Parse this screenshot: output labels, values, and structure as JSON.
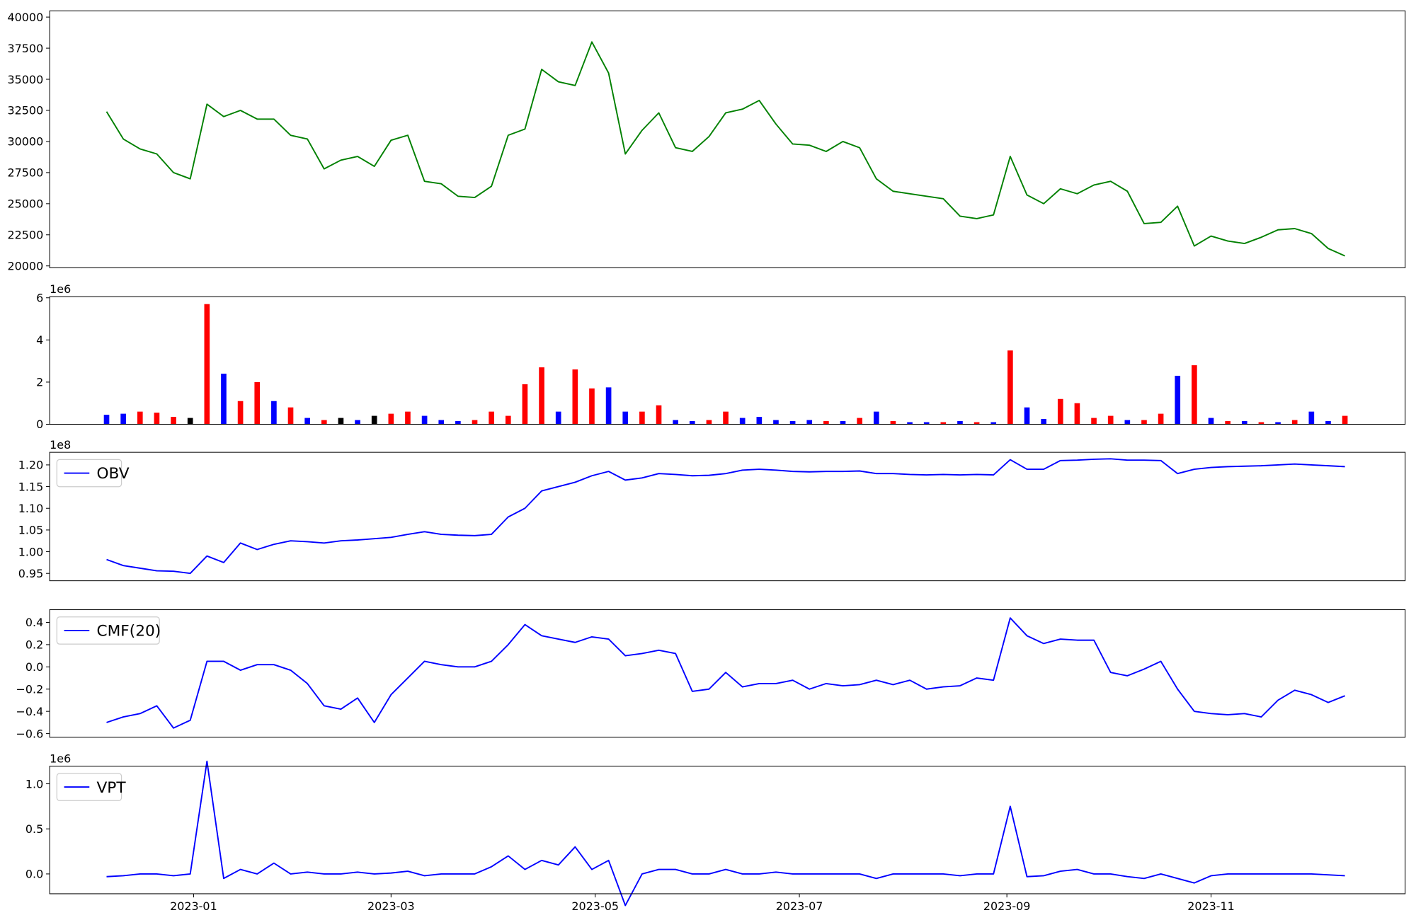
{
  "chart_data": [
    {
      "type": "line",
      "color": "#008000",
      "x": [
        "2022-12-06",
        "2022-12-11",
        "2022-12-16",
        "2022-12-21",
        "2022-12-26",
        "2022-12-31",
        "2023-01-05",
        "2023-01-10",
        "2023-01-15",
        "2023-01-20",
        "2023-01-25",
        "2023-01-30",
        "2023-02-04",
        "2023-02-09",
        "2023-02-14",
        "2023-02-19",
        "2023-02-24",
        "2023-03-01",
        "2023-03-06",
        "2023-03-11",
        "2023-03-16",
        "2023-03-21",
        "2023-03-26",
        "2023-03-31",
        "2023-04-05",
        "2023-04-10",
        "2023-04-15",
        "2023-04-20",
        "2023-04-25",
        "2023-04-30",
        "2023-05-05",
        "2023-05-10",
        "2023-05-15",
        "2023-05-20",
        "2023-05-25",
        "2023-05-30",
        "2023-06-04",
        "2023-06-09",
        "2023-06-14",
        "2023-06-19",
        "2023-06-24",
        "2023-06-29",
        "2023-07-04",
        "2023-07-09",
        "2023-07-14",
        "2023-07-19",
        "2023-07-24",
        "2023-07-29",
        "2023-08-03",
        "2023-08-08",
        "2023-08-13",
        "2023-08-18",
        "2023-08-23",
        "2023-08-28",
        "2023-09-02",
        "2023-09-07",
        "2023-09-12",
        "2023-09-17",
        "2023-09-22",
        "2023-09-27",
        "2023-10-02",
        "2023-10-07",
        "2023-10-12",
        "2023-10-17",
        "2023-10-22",
        "2023-10-27",
        "2023-11-01",
        "2023-11-06",
        "2023-11-11",
        "2023-11-16",
        "2023-11-21",
        "2023-11-26",
        "2023-12-01",
        "2023-12-06",
        "2023-12-11"
      ],
      "values": [
        32400,
        30200,
        29400,
        29000,
        27500,
        27000,
        33000,
        32000,
        32500,
        31800,
        31800,
        30500,
        30200,
        27800,
        28500,
        28800,
        28000,
        30100,
        30500,
        26800,
        26600,
        25600,
        25500,
        26400,
        30500,
        31000,
        35800,
        34800,
        34500,
        38000,
        35500,
        29000,
        30900,
        32300,
        29500,
        29200,
        30400,
        32300,
        32600,
        33300,
        31400,
        29800,
        29700,
        29200,
        30000,
        29500,
        27000,
        26000,
        25800,
        25600,
        25400,
        24000,
        23800,
        24100,
        28800,
        25700,
        25000,
        26200,
        25800,
        26500,
        26800,
        26000,
        23400,
        23500,
        24800,
        21600,
        22400,
        22000,
        21800,
        22300,
        22900,
        23000,
        22600,
        21400,
        20800
      ],
      "xlim": [
        "2022-11-19",
        "2023-12-29"
      ],
      "ylim": [
        19850,
        40500
      ],
      "yticks": [
        20000,
        22500,
        25000,
        27500,
        30000,
        32500,
        35000,
        37500,
        40000
      ]
    },
    {
      "type": "bar",
      "y_offset_label": "1e6",
      "x": [
        "2022-12-06",
        "2022-12-11",
        "2022-12-16",
        "2022-12-21",
        "2022-12-26",
        "2022-12-31",
        "2023-01-05",
        "2023-01-10",
        "2023-01-15",
        "2023-01-20",
        "2023-01-25",
        "2023-01-30",
        "2023-02-04",
        "2023-02-09",
        "2023-02-14",
        "2023-02-19",
        "2023-02-24",
        "2023-03-01",
        "2023-03-06",
        "2023-03-11",
        "2023-03-16",
        "2023-03-21",
        "2023-03-26",
        "2023-03-31",
        "2023-04-05",
        "2023-04-10",
        "2023-04-15",
        "2023-04-20",
        "2023-04-25",
        "2023-04-30",
        "2023-05-05",
        "2023-05-10",
        "2023-05-15",
        "2023-05-20",
        "2023-05-25",
        "2023-05-30",
        "2023-06-04",
        "2023-06-09",
        "2023-06-14",
        "2023-06-19",
        "2023-06-24",
        "2023-06-29",
        "2023-07-04",
        "2023-07-09",
        "2023-07-14",
        "2023-07-19",
        "2023-07-24",
        "2023-07-29",
        "2023-08-03",
        "2023-08-08",
        "2023-08-13",
        "2023-08-18",
        "2023-08-23",
        "2023-08-28",
        "2023-09-02",
        "2023-09-07",
        "2023-09-12",
        "2023-09-17",
        "2023-09-22",
        "2023-09-27",
        "2023-10-02",
        "2023-10-07",
        "2023-10-12",
        "2023-10-17",
        "2023-10-22",
        "2023-10-27",
        "2023-11-01",
        "2023-11-06",
        "2023-11-11",
        "2023-11-16",
        "2023-11-21",
        "2023-11-26",
        "2023-12-01",
        "2023-12-06",
        "2023-12-11"
      ],
      "values": [
        0.45,
        0.5,
        0.6,
        0.55,
        0.35,
        0.3,
        5.7,
        2.4,
        1.1,
        2.0,
        1.1,
        0.8,
        0.3,
        0.2,
        0.3,
        0.2,
        0.4,
        0.5,
        0.6,
        0.4,
        0.2,
        0.15,
        0.2,
        0.6,
        0.4,
        1.9,
        2.7,
        0.6,
        2.6,
        1.7,
        1.75,
        0.6,
        0.6,
        0.9,
        0.2,
        0.15,
        0.2,
        0.6,
        0.3,
        0.35,
        0.2,
        0.15,
        0.2,
        0.15,
        0.15,
        0.3,
        0.6,
        0.15,
        0.1,
        0.1,
        0.1,
        0.15,
        0.1,
        0.1,
        3.5,
        0.8,
        0.25,
        1.2,
        1.0,
        0.3,
        0.4,
        0.2,
        0.2,
        0.5,
        2.3,
        2.8,
        0.3,
        0.15,
        0.15,
        0.1,
        0.1,
        0.2,
        0.6,
        0.15,
        0.4
      ],
      "colors": [
        "blue",
        "blue",
        "red",
        "red",
        "red",
        "black",
        "red",
        "blue",
        "red",
        "red",
        "blue",
        "red",
        "blue",
        "red",
        "black",
        "blue",
        "black",
        "red",
        "red",
        "blue",
        "blue",
        "blue",
        "red",
        "red",
        "red",
        "red",
        "red",
        "blue",
        "red",
        "red",
        "blue",
        "blue",
        "red",
        "red",
        "blue",
        "blue",
        "red",
        "red",
        "blue",
        "blue",
        "blue",
        "blue",
        "blue",
        "red",
        "blue",
        "red",
        "blue",
        "red",
        "blue",
        "blue",
        "red",
        "blue",
        "red",
        "blue",
        "red",
        "blue",
        "blue",
        "red",
        "red",
        "red",
        "red",
        "blue",
        "red",
        "red",
        "blue",
        "red",
        "blue",
        "red",
        "blue",
        "red",
        "blue",
        "red",
        "blue",
        "blue",
        "red"
      ],
      "xlim": [
        "2022-11-19",
        "2023-12-29"
      ],
      "ylim": [
        0,
        6.05
      ],
      "yticks": [
        0,
        2,
        4,
        6
      ]
    },
    {
      "type": "line",
      "y_offset_label": "1e8",
      "legend": "upper left",
      "x": [
        "2022-12-06",
        "2022-12-11",
        "2022-12-16",
        "2022-12-21",
        "2022-12-26",
        "2022-12-31",
        "2023-01-05",
        "2023-01-10",
        "2023-01-15",
        "2023-01-20",
        "2023-01-25",
        "2023-01-30",
        "2023-02-04",
        "2023-02-09",
        "2023-02-14",
        "2023-02-19",
        "2023-02-24",
        "2023-03-01",
        "2023-03-06",
        "2023-03-11",
        "2023-03-16",
        "2023-03-21",
        "2023-03-26",
        "2023-03-31",
        "2023-04-05",
        "2023-04-10",
        "2023-04-15",
        "2023-04-20",
        "2023-04-25",
        "2023-04-30",
        "2023-05-05",
        "2023-05-10",
        "2023-05-15",
        "2023-05-20",
        "2023-05-25",
        "2023-05-30",
        "2023-06-04",
        "2023-06-09",
        "2023-06-14",
        "2023-06-19",
        "2023-06-24",
        "2023-06-29",
        "2023-07-04",
        "2023-07-09",
        "2023-07-14",
        "2023-07-19",
        "2023-07-24",
        "2023-07-29",
        "2023-08-03",
        "2023-08-08",
        "2023-08-13",
        "2023-08-18",
        "2023-08-23",
        "2023-08-28",
        "2023-09-02",
        "2023-09-07",
        "2023-09-12",
        "2023-09-17",
        "2023-09-22",
        "2023-09-27",
        "2023-10-02",
        "2023-10-07",
        "2023-10-12",
        "2023-10-17",
        "2023-10-22",
        "2023-10-27",
        "2023-11-01",
        "2023-11-06",
        "2023-11-11",
        "2023-11-16",
        "2023-11-21",
        "2023-11-26",
        "2023-12-01",
        "2023-12-06",
        "2023-12-11"
      ],
      "series": [
        {
          "name": "OBV",
          "color": "#0000ff",
          "values": [
            0.982,
            0.968,
            0.962,
            0.956,
            0.955,
            0.95,
            0.99,
            0.975,
            1.02,
            1.005,
            1.017,
            1.025,
            1.023,
            1.02,
            1.025,
            1.027,
            1.03,
            1.033,
            1.04,
            1.046,
            1.04,
            1.038,
            1.037,
            1.04,
            1.08,
            1.1,
            1.14,
            1.15,
            1.16,
            1.175,
            1.185,
            1.165,
            1.17,
            1.18,
            1.178,
            1.175,
            1.176,
            1.18,
            1.188,
            1.19,
            1.188,
            1.185,
            1.184,
            1.185,
            1.185,
            1.186,
            1.18,
            1.18,
            1.178,
            1.177,
            1.178,
            1.177,
            1.178,
            1.177,
            1.212,
            1.19,
            1.19,
            1.21,
            1.211,
            1.213,
            1.214,
            1.211,
            1.211,
            1.21,
            1.18,
            1.19,
            1.194,
            1.196,
            1.197,
            1.198,
            1.2,
            1.202,
            1.2,
            1.198,
            1.196
          ]
        }
      ],
      "xlim": [
        "2022-11-19",
        "2023-12-29"
      ],
      "ylim": [
        0.933,
        1.229
      ],
      "yticks": [
        0.95,
        {
          "value": 1.0,
          "label": "1.00"
        },
        1.05,
        {
          "value": 1.1,
          "label": "1.10"
        },
        1.15,
        {
          "value": 1.2,
          "label": "1.20"
        }
      ]
    },
    {
      "type": "line",
      "legend": "upper left",
      "x": [
        "2022-12-06",
        "2022-12-11",
        "2022-12-16",
        "2022-12-21",
        "2022-12-26",
        "2022-12-31",
        "2023-01-05",
        "2023-01-10",
        "2023-01-15",
        "2023-01-20",
        "2023-01-25",
        "2023-01-30",
        "2023-02-04",
        "2023-02-09",
        "2023-02-14",
        "2023-02-19",
        "2023-02-24",
        "2023-03-01",
        "2023-03-06",
        "2023-03-11",
        "2023-03-16",
        "2023-03-21",
        "2023-03-26",
        "2023-03-31",
        "2023-04-05",
        "2023-04-10",
        "2023-04-15",
        "2023-04-20",
        "2023-04-25",
        "2023-04-30",
        "2023-05-05",
        "2023-05-10",
        "2023-05-15",
        "2023-05-20",
        "2023-05-25",
        "2023-05-30",
        "2023-06-04",
        "2023-06-09",
        "2023-06-14",
        "2023-06-19",
        "2023-06-24",
        "2023-06-29",
        "2023-07-04",
        "2023-07-09",
        "2023-07-14",
        "2023-07-19",
        "2023-07-24",
        "2023-07-29",
        "2023-08-03",
        "2023-08-08",
        "2023-08-13",
        "2023-08-18",
        "2023-08-23",
        "2023-08-28",
        "2023-09-02",
        "2023-09-07",
        "2023-09-12",
        "2023-09-17",
        "2023-09-22",
        "2023-09-27",
        "2023-10-02",
        "2023-10-07",
        "2023-10-12",
        "2023-10-17",
        "2023-10-22",
        "2023-10-27",
        "2023-11-01",
        "2023-11-06",
        "2023-11-11",
        "2023-11-16",
        "2023-11-21",
        "2023-11-26",
        "2023-12-01",
        "2023-12-06",
        "2023-12-11"
      ],
      "series": [
        {
          "name": "CMF(20)",
          "color": "#0000ff",
          "values": [
            -0.5,
            -0.45,
            -0.42,
            -0.35,
            -0.55,
            -0.48,
            0.05,
            0.05,
            -0.03,
            0.02,
            0.02,
            -0.03,
            -0.15,
            -0.35,
            -0.38,
            -0.28,
            -0.5,
            -0.25,
            -0.1,
            0.05,
            0.02,
            0.0,
            0.0,
            0.05,
            0.2,
            0.38,
            0.28,
            0.25,
            0.22,
            0.27,
            0.25,
            0.1,
            0.12,
            0.15,
            0.12,
            -0.22,
            -0.2,
            -0.05,
            -0.18,
            -0.15,
            -0.15,
            -0.12,
            -0.2,
            -0.15,
            -0.17,
            -0.16,
            -0.12,
            -0.16,
            -0.12,
            -0.2,
            -0.18,
            -0.17,
            -0.1,
            -0.12,
            0.44,
            0.28,
            0.21,
            0.25,
            0.24,
            0.24,
            -0.05,
            -0.08,
            -0.02,
            0.05,
            -0.2,
            -0.4,
            -0.42,
            -0.43,
            -0.42,
            -0.45,
            -0.3,
            -0.21,
            -0.25,
            -0.32,
            -0.26
          ]
        }
      ],
      "xlim": [
        "2022-11-19",
        "2023-12-29"
      ],
      "ylim": [
        -0.633,
        0.514
      ],
      "yticks": [
        {
          "value": -0.6,
          "label": "−0.6"
        },
        {
          "value": -0.4,
          "label": "−0.4"
        },
        {
          "value": -0.2,
          "label": "−0.2"
        },
        {
          "value": 0,
          "label": "0.0"
        },
        0.2,
        0.4
      ]
    },
    {
      "type": "line",
      "y_offset_label": "1e6",
      "legend": "upper left",
      "x": [
        "2022-12-06",
        "2022-12-11",
        "2022-12-16",
        "2022-12-21",
        "2022-12-26",
        "2022-12-31",
        "2023-01-05",
        "2023-01-10",
        "2023-01-15",
        "2023-01-20",
        "2023-01-25",
        "2023-01-30",
        "2023-02-04",
        "2023-02-09",
        "2023-02-14",
        "2023-02-19",
        "2023-02-24",
        "2023-03-01",
        "2023-03-06",
        "2023-03-11",
        "2023-03-16",
        "2023-03-21",
        "2023-03-26",
        "2023-03-31",
        "2023-04-05",
        "2023-04-10",
        "2023-04-15",
        "2023-04-20",
        "2023-04-25",
        "2023-04-30",
        "2023-05-05",
        "2023-05-10",
        "2023-05-15",
        "2023-05-20",
        "2023-05-25",
        "2023-05-30",
        "2023-06-04",
        "2023-06-09",
        "2023-06-14",
        "2023-06-19",
        "2023-06-24",
        "2023-06-29",
        "2023-07-04",
        "2023-07-09",
        "2023-07-14",
        "2023-07-19",
        "2023-07-24",
        "2023-07-29",
        "2023-08-03",
        "2023-08-08",
        "2023-08-13",
        "2023-08-18",
        "2023-08-23",
        "2023-08-28",
        "2023-09-02",
        "2023-09-07",
        "2023-09-12",
        "2023-09-17",
        "2023-09-22",
        "2023-09-27",
        "2023-10-02",
        "2023-10-07",
        "2023-10-12",
        "2023-10-17",
        "2023-10-22",
        "2023-10-27",
        "2023-11-01",
        "2023-11-06",
        "2023-11-11",
        "2023-11-16",
        "2023-11-21",
        "2023-11-26",
        "2023-12-01",
        "2023-12-06",
        "2023-12-11"
      ],
      "series": [
        {
          "name": "VPT",
          "color": "#0000ff",
          "values": [
            -0.03,
            -0.02,
            0.0,
            0.0,
            -0.02,
            0.0,
            1.25,
            -0.05,
            0.05,
            0.0,
            0.12,
            0.0,
            0.02,
            0.0,
            0.0,
            0.02,
            0.0,
            0.01,
            0.03,
            -0.02,
            0.0,
            0.0,
            0.0,
            0.08,
            0.2,
            0.05,
            0.15,
            0.1,
            0.3,
            0.05,
            0.15,
            -0.35,
            0.0,
            0.05,
            0.05,
            0.0,
            0.0,
            0.05,
            0.0,
            0.0,
            0.02,
            0.0,
            0.0,
            0.0,
            0.0,
            0.0,
            -0.05,
            0.0,
            0.0,
            0.0,
            0.0,
            -0.02,
            0.0,
            0.0,
            0.75,
            -0.03,
            -0.02,
            0.03,
            0.05,
            0.0,
            0.0,
            -0.03,
            -0.05,
            0.0,
            -0.05,
            -0.1,
            -0.02,
            0.0,
            0.0,
            0.0,
            0.0,
            0.0,
            0.0,
            -0.01,
            -0.02
          ]
        }
      ],
      "xlim": [
        "2022-11-19",
        "2023-12-29"
      ],
      "ylim": [
        -0.22,
        1.195
      ],
      "yticks": [
        {
          "value": 0,
          "label": "0.0"
        },
        0.5,
        {
          "value": 1,
          "label": "1.0"
        }
      ],
      "xticks": [
        {
          "value": "2023-01-01",
          "label": "2023-01"
        },
        {
          "value": "2023-03-01",
          "label": "2023-03"
        },
        {
          "value": "2023-05-01",
          "label": "2023-05"
        },
        {
          "value": "2023-07-01",
          "label": "2023-07"
        },
        {
          "value": "2023-09-01",
          "label": "2023-09"
        },
        {
          "value": "2023-11-01",
          "label": "2023-11"
        }
      ]
    }
  ]
}
